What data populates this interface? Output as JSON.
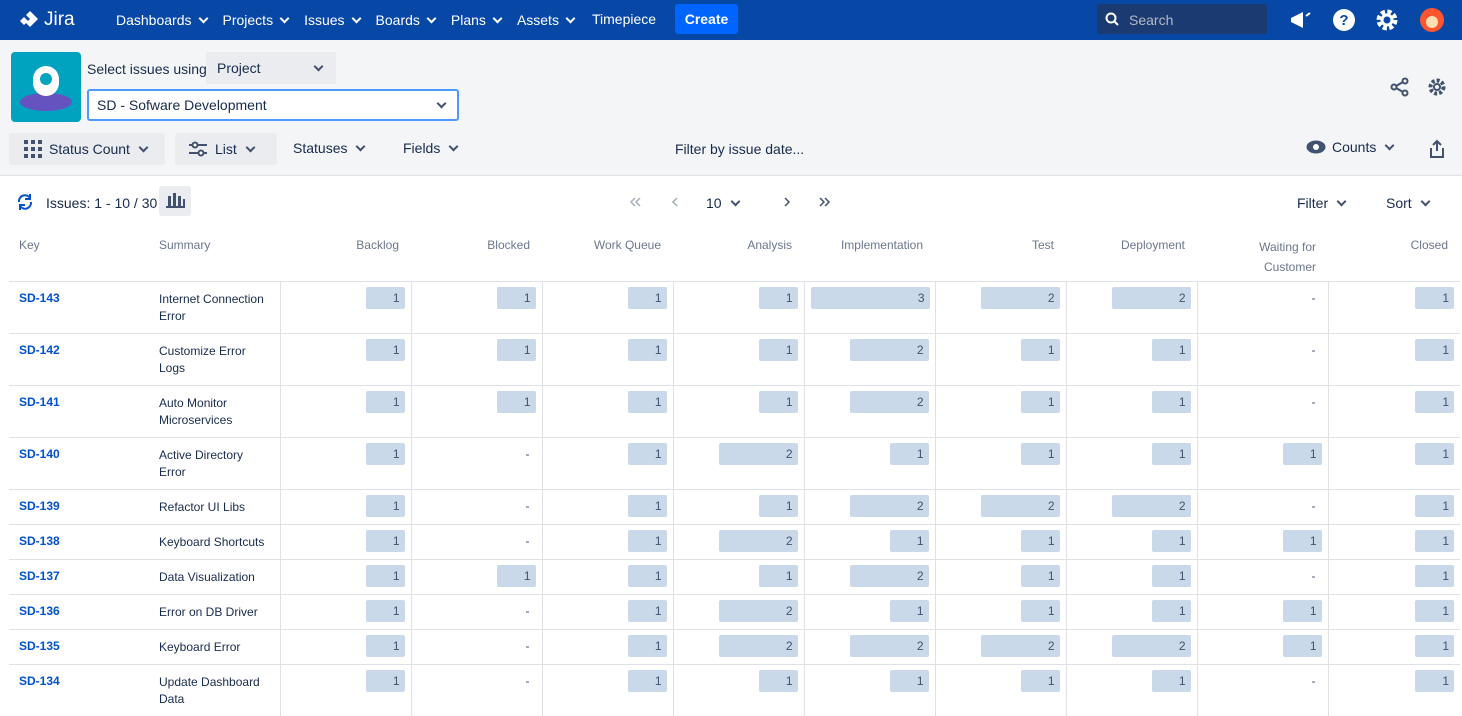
{
  "nav": {
    "logo": "Jira",
    "menu": [
      "Dashboards",
      "Projects",
      "Issues",
      "Boards",
      "Plans",
      "Assets"
    ],
    "timepiece": "Timepiece",
    "create": "Create",
    "search": "Search"
  },
  "toolbar": {
    "select_label": "Select issues using",
    "select_value": "Project",
    "project": "SD - Sofware Development",
    "status_count": "Status Count",
    "list": "List",
    "statuses": "Statuses",
    "fields": "Fields",
    "date_filter": "Filter by issue date...",
    "counts": "Counts"
  },
  "pager": {
    "issues": "Issues: 1 - 10 / 30",
    "page_size": "10",
    "filter": "Filter",
    "sort": "Sort"
  },
  "table": {
    "columns": [
      "Key",
      "Summary",
      "Backlog",
      "Blocked",
      "Work Queue",
      "Analysis",
      "Implementation",
      "Test",
      "Deployment",
      "Waiting for Customer",
      "Closed"
    ],
    "rows": [
      [
        "SD-143",
        "Internet Connection Error",
        1,
        1,
        1,
        1,
        3,
        2,
        2,
        "-",
        1
      ],
      [
        "SD-142",
        "Customize Error Logs",
        1,
        1,
        1,
        1,
        2,
        1,
        1,
        "-",
        1
      ],
      [
        "SD-141",
        "Auto Monitor Microservices",
        1,
        1,
        1,
        1,
        2,
        1,
        1,
        "-",
        1
      ],
      [
        "SD-140",
        "Active Directory Error",
        1,
        "-",
        1,
        2,
        1,
        1,
        1,
        1,
        1
      ],
      [
        "SD-139",
        "Refactor UI Libs",
        1,
        "-",
        1,
        1,
        2,
        2,
        2,
        "-",
        1
      ],
      [
        "SD-138",
        "Keyboard Shortcuts",
        1,
        "-",
        1,
        2,
        1,
        1,
        1,
        1,
        1
      ],
      [
        "SD-137",
        "Data Visualization",
        1,
        1,
        1,
        1,
        2,
        1,
        1,
        "-",
        1
      ],
      [
        "SD-136",
        "Error on DB Driver",
        1,
        "-",
        1,
        2,
        1,
        1,
        1,
        1,
        1
      ],
      [
        "SD-135",
        "Keyboard Error",
        1,
        "-",
        1,
        2,
        2,
        2,
        2,
        1,
        1
      ],
      [
        "SD-134",
        "Update Dashboard Data",
        1,
        "-",
        1,
        1,
        1,
        1,
        1,
        "-",
        1
      ]
    ]
  }
}
